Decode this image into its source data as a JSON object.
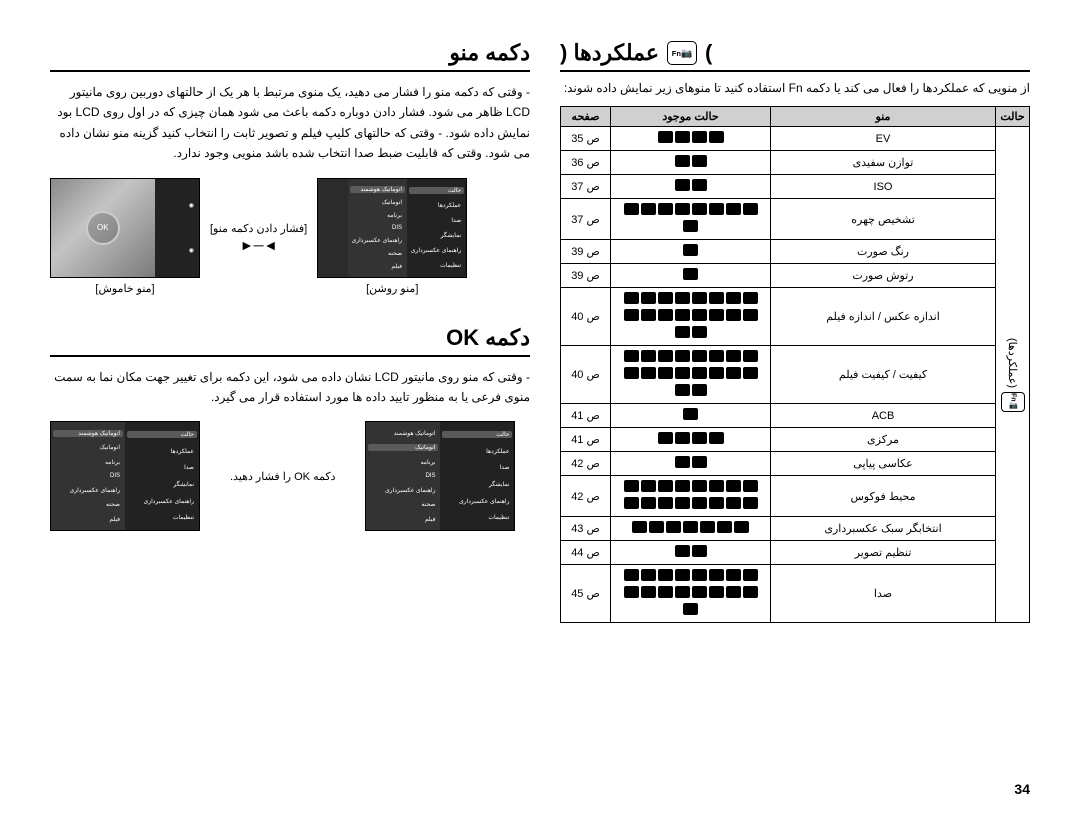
{
  "page_number": "34",
  "right": {
    "menu_button": {
      "title": "دکمه منو",
      "text": "- وقتی که دکمه منو را فشار می دهید، یک منوی مرتبط با هر یک از حالتهای دوربین روی مانیتور LCD ظاهر می شود. فشار دادن دوباره دکمه باعث می شود همان چیزی که در اول روی LCD بود نمایش داده شود.\n- وقتی که حالتهای کلیپ فیلم و تصویر ثابت را انتخاب کنید گزینه منو نشان داده می شود. وقتی که قابلیت ضبط صدا انتخاب شده باشد منویی وجود ندارد.",
      "label_press": "[فشار دادن دکمه منو]",
      "label_off": "[منو خاموش]",
      "label_on": "[منو روشن]",
      "menu_items": [
        "حالت",
        "عملکردها",
        "صدا",
        "نمایشگر",
        "راهنمای عکسبرداری",
        "تنظیمات"
      ],
      "sub_items": [
        "اتوماتیک هوشمند",
        "اتوماتیک",
        "برنامه",
        "DIS",
        "راهنمای عکسبرداری",
        "صحنه",
        "فیلم"
      ]
    },
    "ok_button": {
      "title": "دکمه OK",
      "text": "- وقتی که منو روی مانیتور LCD نشان داده می شود، این دکمه برای تغییر جهت مکان نما به سمت منوی فرعی یا به منظور تایید داده ها مورد استفاده قرار می گیرد.",
      "label_press_ok": "دکمه OK را فشار دهید.",
      "left_items": [
        "اتوماتیک هوشمند",
        "اتوماتیک",
        "برنامه",
        "DIS",
        "راهنمای عکسبرداری",
        "صحنه",
        "فیلم"
      ],
      "footer_left": "بازگشت",
      "footer_right": "خروج",
      "back_label": "بازگشت"
    }
  },
  "left": {
    "title": "عملکردها (",
    "fn_label": "Fn",
    "intro": "از منویی که عملکردها را فعال می کند یا دکمه Fn استفاده کنید تا منوهای زیر نمایش داده شوند:",
    "headers": {
      "halat": "حالت",
      "menu": "منو",
      "mode": "حالت موجود",
      "page": "صفحه"
    },
    "halat_cell": "(عملکردها)",
    "rows": [
      {
        "menu": "EV",
        "iconCount": 4,
        "page": "ص 35"
      },
      {
        "menu": "توازن سفیدی",
        "iconCount": 2,
        "page": "ص 36"
      },
      {
        "menu": "ISO",
        "iconCount": 2,
        "page": "ص 37"
      },
      {
        "menu": "تشخیص چهره",
        "iconCount": 9,
        "page": "ص 37"
      },
      {
        "menu": "رنگ صورت",
        "iconCount": 1,
        "page": "ص 39"
      },
      {
        "menu": "رتوش صورت",
        "iconCount": 1,
        "page": "ص 39"
      },
      {
        "menu": "اندازه عکس / اندازه فیلم",
        "iconCount": 18,
        "page": "ص 40"
      },
      {
        "menu": "کیفیت / کیفیت فیلم",
        "iconCount": 18,
        "page": "ص 40"
      },
      {
        "menu": "ACB",
        "iconCount": 1,
        "page": "ص 41"
      },
      {
        "menu": "مرکزی",
        "iconCount": 4,
        "page": "ص 41"
      },
      {
        "menu": "عکاسی پیاپی",
        "iconCount": 2,
        "page": "ص 42"
      },
      {
        "menu": "محیط فوکوس",
        "iconCount": 16,
        "page": "ص 42"
      },
      {
        "menu": "انتخابگر سبک عکسبرداری",
        "iconCount": 7,
        "page": "ص 43"
      },
      {
        "menu": "تنظیم تصویر",
        "iconCount": 2,
        "page": "ص 44"
      },
      {
        "menu": "صدا",
        "iconCount": 17,
        "page": "ص 45"
      }
    ]
  }
}
